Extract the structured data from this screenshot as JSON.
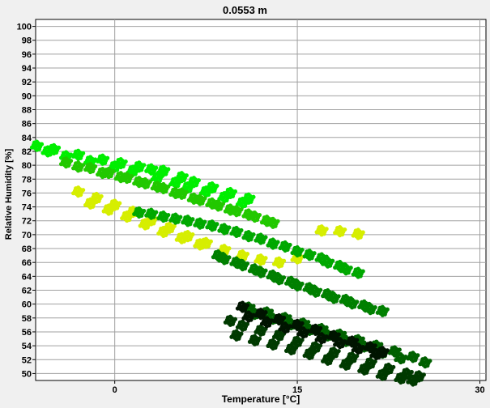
{
  "chart_data": {
    "type": "scatter",
    "title": "0.0553 m",
    "xlabel": "Temperature [°C]",
    "ylabel": "Relative Humidity [%]",
    "xlim": [
      -6.5,
      30.5
    ],
    "ylim": [
      49,
      101
    ],
    "x_ticks": [
      "0",
      "15",
      "30"
    ],
    "y_ticks": [
      "100",
      "98",
      "96",
      "94",
      "92",
      "90",
      "88",
      "86",
      "84",
      "82",
      "80",
      "78",
      "76",
      "74",
      "72",
      "70",
      "68",
      "66",
      "64",
      "62",
      "60",
      "58",
      "56",
      "54",
      "52",
      "50"
    ],
    "grid": true,
    "colors": [
      "#d6ee00",
      "#00ee00",
      "#22c800",
      "#00a800",
      "#008000",
      "#006000",
      "#003a00",
      "#001400"
    ],
    "series": [
      {
        "color_index": 1,
        "x": [
          -6.4,
          -5,
          -3,
          -1,
          0.5,
          2,
          3,
          4,
          5.5,
          6.5,
          8,
          9.5,
          11,
          -5.5,
          -4,
          -2,
          0,
          1.5,
          3.5,
          5,
          6,
          7.5,
          9,
          10.5
        ],
        "y": [
          82.8,
          82.3,
          81.5,
          80.8,
          80.3,
          79.8,
          79.4,
          79.2,
          78.3,
          77.6,
          76.8,
          76.0,
          75.2,
          82.0,
          81.3,
          80.6,
          79.8,
          79.2,
          78.2,
          77.5,
          76.8,
          76.2,
          75.4,
          74.6
        ]
      },
      {
        "color_index": 2,
        "x": [
          -4,
          -2,
          -0.5,
          1,
          2.5,
          4,
          5.5,
          7,
          8.5,
          10,
          11.5,
          13,
          -3,
          -1,
          0.5,
          2,
          3.5,
          5,
          6.5,
          8,
          9.5,
          11,
          12.5
        ],
        "y": [
          80.4,
          79.6,
          78.9,
          78.2,
          77.4,
          76.7,
          75.9,
          75.0,
          74.2,
          73.4,
          72.6,
          71.7,
          79.8,
          78.9,
          78.3,
          77.6,
          76.9,
          76.0,
          75.2,
          74.5,
          73.6,
          72.9,
          72.0
        ]
      },
      {
        "color_index": 0,
        "x": [
          -3,
          -1.5,
          0,
          1.5,
          3,
          4.5,
          6,
          7.5,
          9,
          10.5,
          12,
          13.5,
          15,
          17,
          18.5,
          20,
          -2,
          -0.5,
          1,
          2.5,
          4,
          5.5,
          7
        ],
        "y": [
          76.2,
          75.3,
          74.3,
          73.3,
          72.1,
          71.0,
          69.8,
          68.8,
          67.8,
          67.0,
          66.4,
          66.0,
          66.6,
          70.6,
          70.5,
          70.1,
          74.5,
          73.6,
          72.6,
          71.5,
          70.4,
          69.5,
          68.6
        ]
      },
      {
        "color_index": 3,
        "x": [
          2,
          4,
          6,
          8,
          10,
          12,
          14,
          16,
          17.5,
          19,
          3,
          5,
          7,
          9,
          11,
          13,
          15,
          17,
          18.5,
          20
        ],
        "y": [
          73.2,
          72.6,
          72.0,
          71.3,
          70.4,
          69.4,
          68.3,
          67.1,
          66.0,
          65.0,
          73.0,
          72.3,
          71.6,
          70.8,
          69.8,
          68.7,
          67.6,
          66.6,
          65.5,
          64.5
        ]
      },
      {
        "color_index": 4,
        "x": [
          8.5,
          10,
          11.5,
          13,
          14.5,
          16,
          17.5,
          19,
          20.5,
          22,
          9,
          10.5,
          12,
          13.5,
          15,
          16.5,
          18,
          19.5,
          21
        ],
        "y": [
          67.0,
          66.0,
          65.0,
          64.1,
          63.2,
          62.3,
          61.4,
          60.6,
          59.8,
          59.0,
          66.5,
          65.6,
          64.6,
          63.6,
          62.7,
          61.8,
          60.9,
          60.1,
          59.3
        ]
      },
      {
        "color_index": 5,
        "x": [
          11,
          12.5,
          14,
          15.5,
          17,
          18.5,
          20,
          21.5,
          23,
          24.5,
          25.5,
          11.5,
          13,
          14.5,
          16,
          17.5,
          19,
          20.5,
          22,
          23.5
        ],
        "y": [
          59.5,
          58.8,
          58.0,
          57.2,
          56.4,
          55.6,
          54.8,
          54.0,
          53.2,
          52.4,
          51.6,
          58.6,
          57.9,
          57.1,
          56.3,
          55.5,
          54.7,
          53.9,
          53.0,
          52.2
        ]
      },
      {
        "color_index": 6,
        "x": [
          9.5,
          10.5,
          12,
          13.5,
          15,
          16.5,
          18,
          19.5,
          21,
          22.5,
          24,
          25,
          10,
          11.5,
          13,
          14.5,
          16,
          17.5,
          19,
          20.5,
          22,
          23.5,
          24.5
        ],
        "y": [
          57.6,
          56.9,
          56.2,
          55.5,
          54.6,
          53.8,
          53.0,
          52.3,
          51.5,
          50.7,
          50.0,
          49.6,
          55.5,
          54.8,
          54.2,
          53.5,
          52.8,
          52.0,
          51.3,
          50.6,
          49.8,
          49.3,
          49.0
        ]
      },
      {
        "color_index": 7,
        "x": [
          10.5,
          12,
          13.5,
          15,
          16.5,
          18,
          19.5,
          21,
          22,
          11,
          12.5,
          14,
          15.5,
          17,
          18.5,
          20,
          21.5
        ],
        "y": [
          59.6,
          58.6,
          57.8,
          57.0,
          56.3,
          55.4,
          54.6,
          53.8,
          53.1,
          58.2,
          57.4,
          56.6,
          55.9,
          55.1,
          54.4,
          53.6,
          52.8
        ]
      }
    ]
  }
}
